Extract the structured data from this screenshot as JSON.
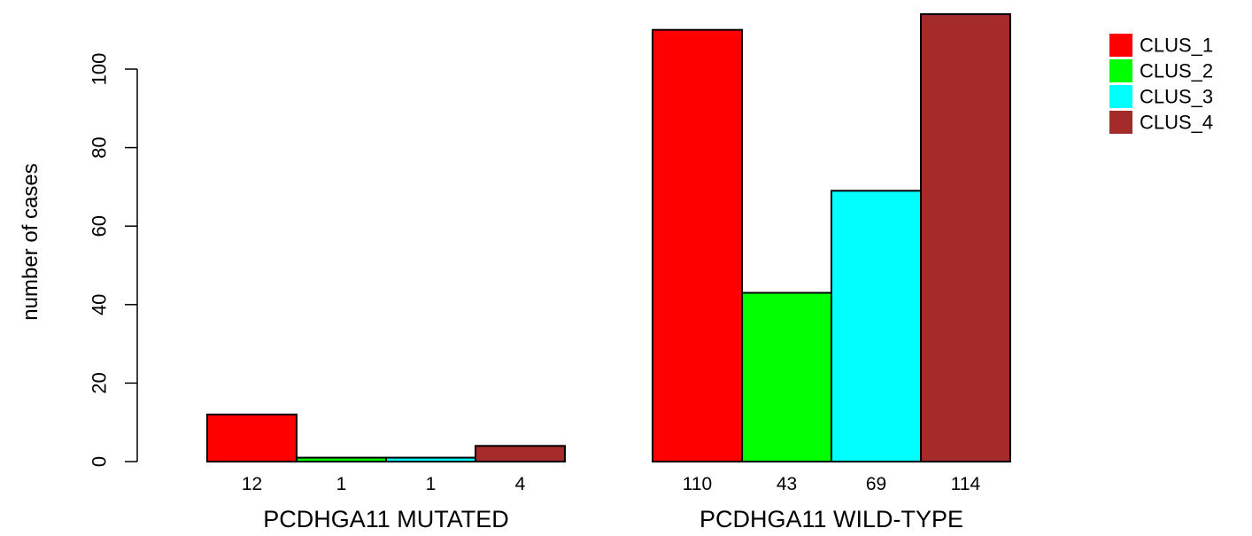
{
  "chart_data": {
    "type": "bar",
    "ylabel": "number of cases",
    "ylim": [
      0,
      110
    ],
    "yticks": [
      0,
      20,
      40,
      60,
      80,
      100
    ],
    "groups": [
      "PCDHGA11 MUTATED",
      "PCDHGA11 WILD-TYPE"
    ],
    "series": [
      {
        "name": "CLUS_1",
        "color": "#FF0000",
        "values": [
          12,
          110
        ]
      },
      {
        "name": "CLUS_2",
        "color": "#00FF00",
        "values": [
          1,
          43
        ]
      },
      {
        "name": "CLUS_3",
        "color": "#00FFFF",
        "values": [
          1,
          69
        ]
      },
      {
        "name": "CLUS_4",
        "color": "#A52A2A",
        "values": [
          4,
          114
        ]
      }
    ],
    "legend_position": "top-right",
    "grid": false
  }
}
